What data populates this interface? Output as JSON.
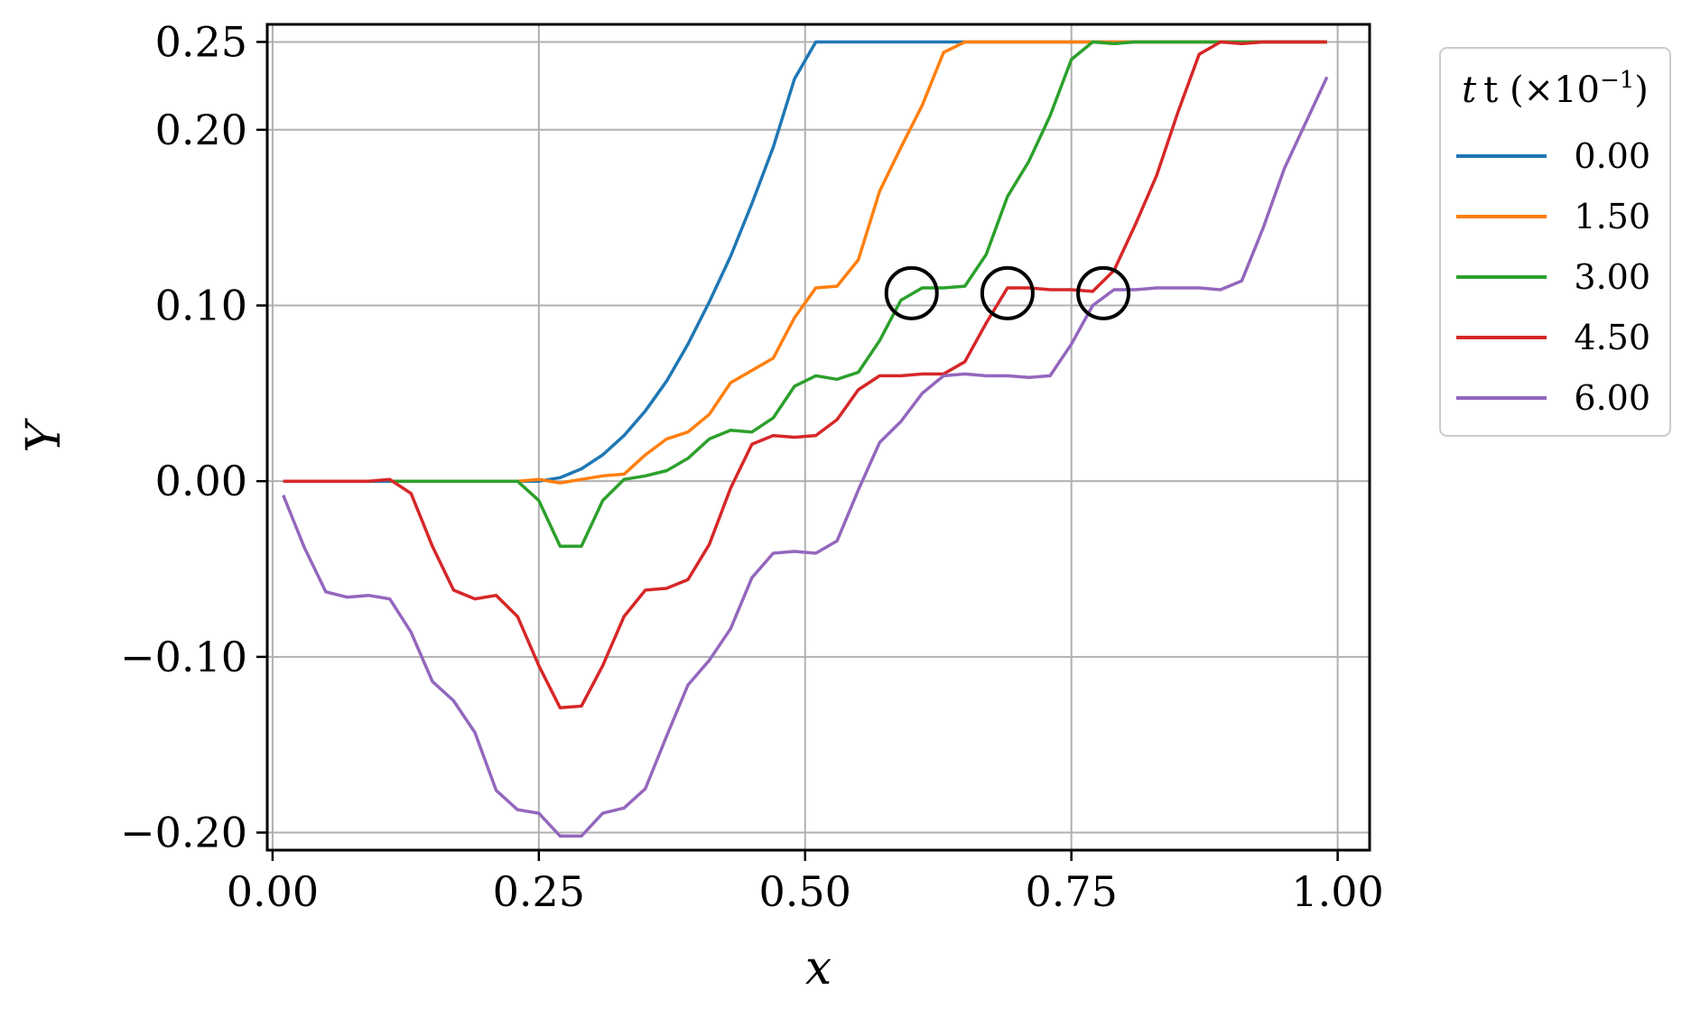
{
  "chart_data": {
    "type": "line",
    "xlabel": "x",
    "ylabel": "Y",
    "xlim": [
      -0.005,
      1.03
    ],
    "ylim": [
      -0.21,
      0.26
    ],
    "xticks": [
      0.0,
      0.25,
      0.5,
      0.75,
      1.0
    ],
    "xtick_labels": [
      "0.00",
      "0.25",
      "0.50",
      "0.75",
      "1.00"
    ],
    "yticks": [
      0.25,
      0.2,
      0.1,
      0.0,
      -0.1,
      -0.2
    ],
    "ytick_labels": [
      "0.25",
      "0.20",
      "0.10",
      "0.00",
      "−0.10",
      "−0.20"
    ],
    "grid": true,
    "legend": {
      "title_main": "t (×10",
      "title_exp": "−1",
      "title_close": ")",
      "placement": "outside-top-right"
    },
    "series": [
      {
        "name": "0.00",
        "color": "#1f77b4",
        "x": [
          0.01,
          0.03,
          0.05,
          0.07,
          0.09,
          0.11,
          0.13,
          0.15,
          0.17,
          0.19,
          0.21,
          0.23,
          0.25,
          0.27,
          0.29,
          0.31,
          0.33,
          0.35,
          0.37,
          0.39,
          0.41,
          0.43,
          0.45,
          0.47,
          0.49,
          0.51,
          0.53,
          0.55,
          0.57,
          0.59,
          0.61,
          0.63,
          0.65,
          0.67,
          0.69,
          0.71,
          0.73,
          0.75,
          0.77,
          0.79,
          0.81,
          0.83,
          0.85,
          0.87,
          0.89,
          0.91,
          0.93,
          0.95,
          0.97,
          0.99
        ],
        "y": [
          0,
          0,
          0,
          0,
          0,
          0,
          0,
          0,
          0,
          0,
          0,
          0,
          0,
          0.002,
          0.007,
          0.015,
          0.026,
          0.04,
          0.057,
          0.078,
          0.102,
          0.128,
          0.158,
          0.19,
          0.229,
          0.25,
          0.25,
          0.25,
          0.25,
          0.25,
          0.25,
          0.25,
          0.25,
          0.25,
          0.25,
          0.25,
          0.25,
          0.25,
          0.25,
          0.25,
          0.25,
          0.25,
          0.25,
          0.25,
          0.25,
          0.25,
          0.25,
          0.25,
          0.25,
          0.25
        ]
      },
      {
        "name": "1.50",
        "color": "#ff7f0e",
        "x": [
          0.23,
          0.25,
          0.27,
          0.29,
          0.31,
          0.33,
          0.35,
          0.37,
          0.39,
          0.41,
          0.43,
          0.45,
          0.47,
          0.49,
          0.51,
          0.53,
          0.55,
          0.57,
          0.59,
          0.61,
          0.63,
          0.65,
          0.67,
          0.69,
          0.71,
          0.73,
          0.75,
          0.77,
          0.79,
          0.81,
          0.83,
          0.85,
          0.87,
          0.89,
          0.91,
          0.93,
          0.95,
          0.97,
          0.99
        ],
        "y": [
          0,
          0.001,
          -0.001,
          0.001,
          0.003,
          0.004,
          0.015,
          0.024,
          0.028,
          0.038,
          0.056,
          0.063,
          0.07,
          0.093,
          0.11,
          0.111,
          0.126,
          0.165,
          0.19,
          0.214,
          0.244,
          0.25,
          0.25,
          0.25,
          0.25,
          0.25,
          0.25,
          0.25,
          0.25,
          0.25,
          0.25,
          0.25,
          0.25,
          0.25,
          0.25,
          0.25,
          0.25,
          0.25,
          0.25
        ]
      },
      {
        "name": "3.00",
        "color": "#2ca02c",
        "x": [
          0.11,
          0.13,
          0.15,
          0.17,
          0.19,
          0.21,
          0.23,
          0.25,
          0.27,
          0.29,
          0.31,
          0.33,
          0.35,
          0.37,
          0.39,
          0.41,
          0.43,
          0.45,
          0.47,
          0.49,
          0.51,
          0.53,
          0.55,
          0.57,
          0.59,
          0.61,
          0.63,
          0.65,
          0.67,
          0.69,
          0.71,
          0.73,
          0.75,
          0.77,
          0.79,
          0.81,
          0.83,
          0.85,
          0.87,
          0.89,
          0.91,
          0.93,
          0.95,
          0.97,
          0.99
        ],
        "y": [
          0,
          0,
          0,
          0,
          0,
          0,
          0,
          -0.011,
          -0.037,
          -0.037,
          -0.011,
          0.001,
          0.003,
          0.006,
          0.013,
          0.024,
          0.029,
          0.028,
          0.036,
          0.054,
          0.06,
          0.058,
          0.062,
          0.08,
          0.103,
          0.11,
          0.11,
          0.111,
          0.129,
          0.162,
          0.182,
          0.208,
          0.24,
          0.25,
          0.249,
          0.25,
          0.25,
          0.25,
          0.25,
          0.25,
          0.25,
          0.25,
          0.25,
          0.25,
          0.25
        ]
      },
      {
        "name": "4.50",
        "color": "#d62728",
        "x": [
          0.01,
          0.03,
          0.05,
          0.07,
          0.09,
          0.11,
          0.13,
          0.15,
          0.17,
          0.19,
          0.21,
          0.23,
          0.25,
          0.27,
          0.29,
          0.31,
          0.33,
          0.35,
          0.37,
          0.39,
          0.41,
          0.43,
          0.45,
          0.47,
          0.49,
          0.51,
          0.53,
          0.55,
          0.57,
          0.59,
          0.61,
          0.63,
          0.65,
          0.67,
          0.69,
          0.71,
          0.73,
          0.75,
          0.77,
          0.79,
          0.81,
          0.83,
          0.85,
          0.87,
          0.89,
          0.91,
          0.93,
          0.95,
          0.97,
          0.99
        ],
        "y": [
          0,
          0,
          0,
          0,
          0,
          0.001,
          -0.007,
          -0.037,
          -0.062,
          -0.067,
          -0.065,
          -0.077,
          -0.105,
          -0.129,
          -0.128,
          -0.105,
          -0.077,
          -0.062,
          -0.061,
          -0.056,
          -0.036,
          -0.004,
          0.021,
          0.026,
          0.025,
          0.026,
          0.035,
          0.052,
          0.06,
          0.06,
          0.061,
          0.061,
          0.068,
          0.09,
          0.11,
          0.11,
          0.109,
          0.109,
          0.108,
          0.12,
          0.146,
          0.174,
          0.21,
          0.243,
          0.25,
          0.249,
          0.25,
          0.25,
          0.25,
          0.25
        ]
      },
      {
        "name": "6.00",
        "color": "#9467bd",
        "x": [
          0.01,
          0.03,
          0.05,
          0.07,
          0.09,
          0.11,
          0.13,
          0.15,
          0.17,
          0.19,
          0.21,
          0.23,
          0.25,
          0.27,
          0.29,
          0.31,
          0.33,
          0.35,
          0.37,
          0.39,
          0.41,
          0.43,
          0.45,
          0.47,
          0.49,
          0.51,
          0.53,
          0.55,
          0.57,
          0.59,
          0.61,
          0.63,
          0.65,
          0.67,
          0.69,
          0.71,
          0.73,
          0.75,
          0.77,
          0.79,
          0.81,
          0.83,
          0.85,
          0.87,
          0.89,
          0.91,
          0.93,
          0.95,
          0.97,
          0.99
        ],
        "y": [
          -0.008,
          -0.038,
          -0.063,
          -0.066,
          -0.065,
          -0.067,
          -0.086,
          -0.114,
          -0.125,
          -0.143,
          -0.176,
          -0.187,
          -0.189,
          -0.202,
          -0.202,
          -0.189,
          -0.186,
          -0.175,
          -0.145,
          -0.116,
          -0.102,
          -0.084,
          -0.055,
          -0.041,
          -0.04,
          -0.041,
          -0.034,
          -0.005,
          0.022,
          0.034,
          0.05,
          0.06,
          0.061,
          0.06,
          0.06,
          0.059,
          0.06,
          0.078,
          0.1,
          0.109,
          0.109,
          0.11,
          0.11,
          0.11,
          0.109,
          0.114,
          0.144,
          0.178,
          0.204,
          0.23
        ]
      }
    ],
    "annotations": [
      {
        "shape": "circle",
        "x": 0.6,
        "y": 0.107
      },
      {
        "shape": "circle",
        "x": 0.69,
        "y": 0.107
      },
      {
        "shape": "circle",
        "x": 0.78,
        "y": 0.107
      }
    ]
  }
}
